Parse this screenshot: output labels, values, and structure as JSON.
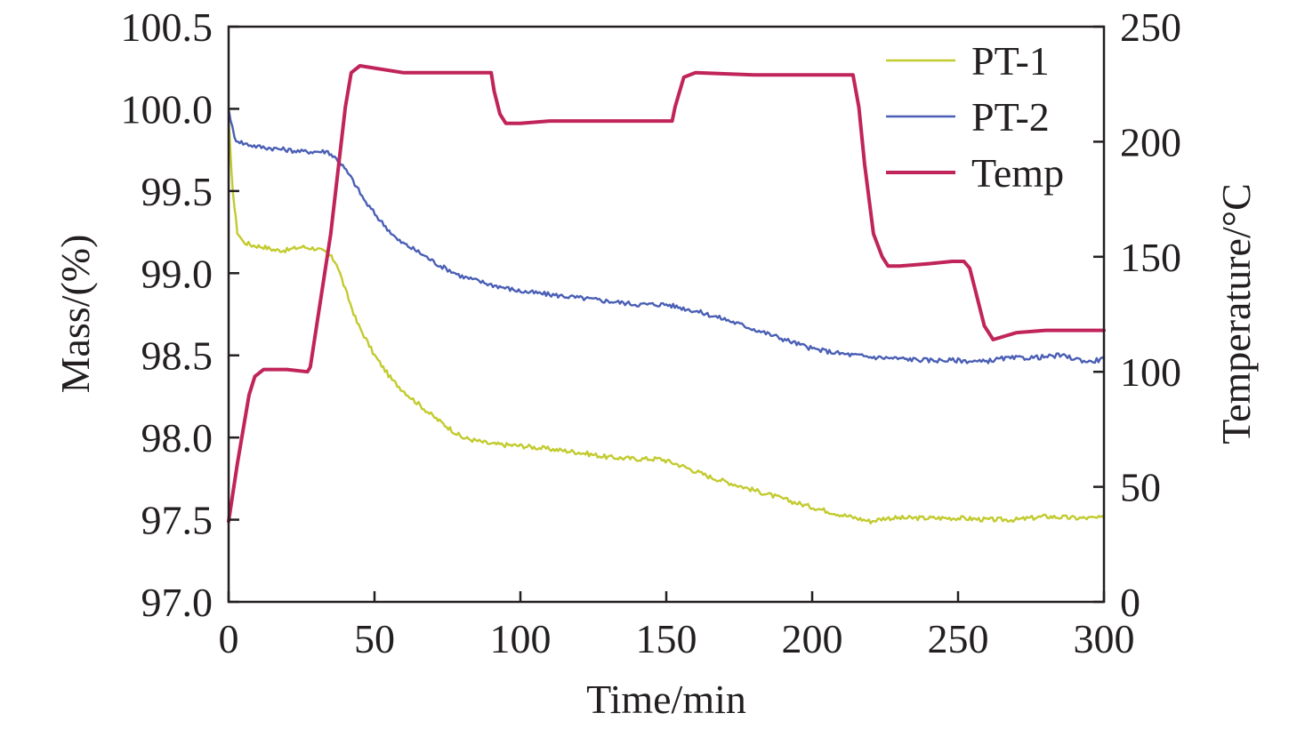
{
  "chart_data": {
    "type": "line",
    "xlabel": "Time/min",
    "ylabel": "Mass/(%)",
    "y2label": "Temperature/°C",
    "xlim": [
      0,
      300
    ],
    "ylim": [
      97.0,
      100.5
    ],
    "y2lim": [
      0,
      250
    ],
    "xticks": [
      "0",
      "50",
      "100",
      "150",
      "200",
      "250",
      "300"
    ],
    "yticks": [
      "97.0",
      "97.5",
      "98.0",
      "98.5",
      "99.0",
      "99.5",
      "100.0",
      "100.5"
    ],
    "y2ticks": [
      "0",
      "50",
      "100",
      "150",
      "200",
      "250"
    ],
    "grid": false,
    "legend_position": "top-right",
    "series": [
      {
        "name": "PT-1",
        "axis": "left",
        "color": "#c2cb2e",
        "x": [
          0,
          1,
          2,
          3,
          5,
          8,
          12,
          16,
          20,
          25,
          30,
          34,
          37,
          40,
          44,
          50,
          56,
          62,
          70,
          80,
          90,
          100,
          110,
          120,
          130,
          140,
          148,
          155,
          165,
          180,
          195,
          210,
          220,
          225,
          235,
          250,
          260,
          270,
          280,
          290,
          300
        ],
        "y": [
          99.95,
          99.6,
          99.4,
          99.25,
          99.19,
          99.17,
          99.16,
          99.14,
          99.14,
          99.16,
          99.15,
          99.12,
          99.06,
          98.9,
          98.7,
          98.5,
          98.35,
          98.25,
          98.13,
          98.0,
          97.96,
          97.95,
          97.93,
          97.91,
          97.88,
          97.87,
          97.87,
          97.83,
          97.76,
          97.68,
          97.6,
          97.53,
          97.49,
          97.51,
          97.51,
          97.51,
          97.5,
          97.5,
          97.52,
          97.51,
          97.51
        ]
      },
      {
        "name": "PT-2",
        "axis": "left",
        "color": "#4a5fb5",
        "x": [
          0,
          2,
          5,
          10,
          15,
          20,
          25,
          30,
          34,
          38,
          42,
          47,
          52,
          58,
          65,
          72,
          80,
          90,
          100,
          110,
          120,
          130,
          140,
          150,
          160,
          170,
          180,
          190,
          200,
          210,
          220,
          230,
          240,
          250,
          258,
          265,
          280,
          285,
          290,
          295,
          300
        ],
        "y": [
          100.0,
          99.82,
          99.79,
          99.77,
          99.76,
          99.75,
          99.74,
          99.74,
          99.74,
          99.68,
          99.58,
          99.43,
          99.32,
          99.2,
          99.13,
          99.05,
          98.98,
          98.93,
          98.89,
          98.87,
          98.85,
          98.83,
          98.81,
          98.81,
          98.77,
          98.72,
          98.66,
          98.6,
          98.54,
          98.51,
          98.49,
          98.48,
          98.47,
          98.47,
          98.46,
          98.48,
          98.49,
          98.5,
          98.48,
          98.46,
          98.48
        ]
      },
      {
        "name": "Temp",
        "axis": "right",
        "color": "#c0245a",
        "x": [
          0,
          3,
          7,
          9,
          12,
          20,
          27,
          28,
          35,
          40,
          42,
          45,
          50,
          60,
          90,
          91,
          93,
          95,
          100,
          110,
          130,
          152,
          153,
          156,
          160,
          180,
          200,
          214,
          216,
          218,
          221,
          224,
          226,
          230,
          240,
          248,
          252,
          254,
          256,
          259,
          262,
          270,
          280,
          290,
          300
        ],
        "y": [
          35,
          60,
          90,
          98,
          101,
          101,
          100,
          102,
          160,
          215,
          230,
          233,
          232,
          230,
          230,
          222,
          212,
          208,
          208,
          209,
          209,
          209,
          215,
          228,
          230,
          229,
          229,
          229,
          215,
          190,
          160,
          150,
          146,
          146,
          147,
          148,
          148,
          145,
          135,
          120,
          114,
          117,
          118,
          118,
          118
        ]
      }
    ]
  }
}
